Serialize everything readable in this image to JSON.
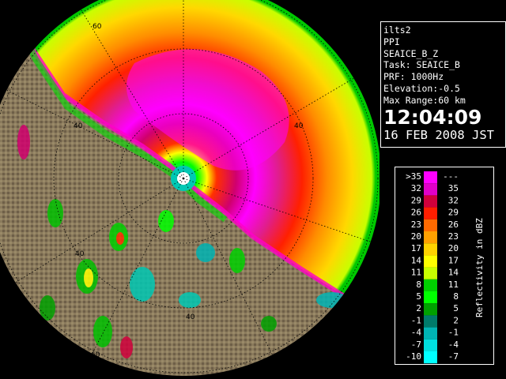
{
  "info": {
    "site": "ilts2",
    "scan_type": "PPI",
    "product": "SEAICE_B_Z",
    "task": "Task: SEAICE_B",
    "prf": "PRF: 1000Hz",
    "elevation": "Elevation:-0.5",
    "max_range": "Max Range:60 km",
    "time": "12:04:09",
    "date": "16 FEB 2008 JST"
  },
  "legend": {
    "axis_label": "Reflectivity in dBZ",
    "rows": [
      {
        "low": ">35",
        "high": "---",
        "color": "#ff00ff"
      },
      {
        "low": "32",
        "high": "35",
        "color": "#e000c8"
      },
      {
        "low": "29",
        "high": "32",
        "color": "#d0003c"
      },
      {
        "low": "26",
        "high": "29",
        "color": "#ff1e00"
      },
      {
        "low": "23",
        "high": "26",
        "color": "#ff6a00"
      },
      {
        "low": "20",
        "high": "23",
        "color": "#ffa000"
      },
      {
        "low": "17",
        "high": "20",
        "color": "#ffd200"
      },
      {
        "low": "14",
        "high": "17",
        "color": "#ffff00"
      },
      {
        "low": "11",
        "high": "14",
        "color": "#c8ff00"
      },
      {
        "low": "8",
        "high": "11",
        "color": "#00d000"
      },
      {
        "low": "5",
        "high": "8",
        "color": "#00ff00"
      },
      {
        "low": "2",
        "high": "5",
        "color": "#00a000"
      },
      {
        "low": "-1",
        "high": "2",
        "color": "#007a6a"
      },
      {
        "low": "-4",
        "high": "-1",
        "color": "#00b4b4"
      },
      {
        "low": "-7",
        "high": "-4",
        "color": "#00e0e0"
      },
      {
        "low": "-10",
        "high": "-7",
        "color": "#00ffff"
      }
    ]
  },
  "map": {
    "range_labels": [
      "60",
      "40",
      "40",
      "40",
      "40",
      "60",
      "60"
    ],
    "land_color": "#8a7a5c",
    "background": "#000000"
  }
}
